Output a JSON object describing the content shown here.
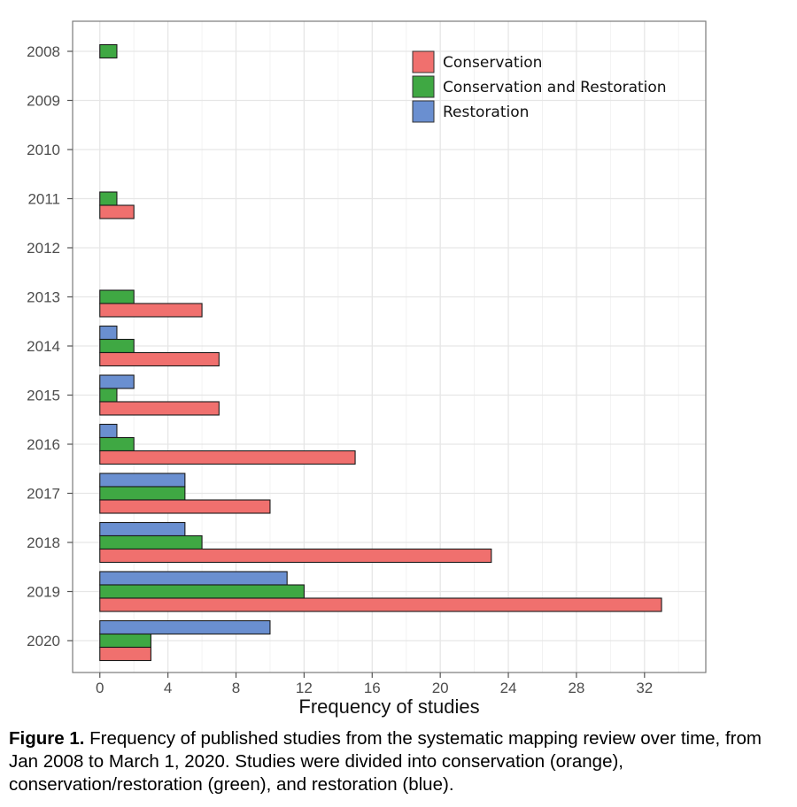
{
  "chart_data": {
    "type": "bar",
    "orientation": "horizontal",
    "categories": [
      "2008",
      "2009",
      "2010",
      "2011",
      "2012",
      "2013",
      "2014",
      "2015",
      "2016",
      "2017",
      "2018",
      "2019",
      "2020"
    ],
    "series": [
      {
        "name": "Restoration",
        "color": "#6a8fd0",
        "values": [
          0,
          0,
          0,
          0,
          0,
          0,
          1,
          2,
          1,
          5,
          5,
          11,
          10
        ]
      },
      {
        "name": "Conservation and Restoration",
        "color": "#3fa843",
        "values": [
          1,
          0,
          0,
          1,
          0,
          2,
          2,
          1,
          2,
          5,
          6,
          12,
          3
        ]
      },
      {
        "name": "Conservation",
        "color": "#f0706e",
        "values": [
          0,
          0,
          0,
          2,
          0,
          6,
          7,
          7,
          15,
          10,
          23,
          33,
          3
        ]
      }
    ],
    "legend_order": [
      "Conservation",
      "Conservation and Restoration",
      "Restoration"
    ],
    "xlabel": "Frequency of studies",
    "ylabel": "",
    "xlim": [
      -1.6,
      35.6
    ],
    "xticks": [
      0,
      4,
      8,
      12,
      16,
      20,
      24,
      28,
      32
    ],
    "grid": true,
    "legend_position": "top-right"
  },
  "caption": {
    "label": "Figure 1.",
    "text": " Frequency of published studies from the systematic mapping review over time, from Jan 2008 to March 1, 2020. Studies were divided into conservation (orange), conservation/restoration (green), and restoration (blue)."
  }
}
